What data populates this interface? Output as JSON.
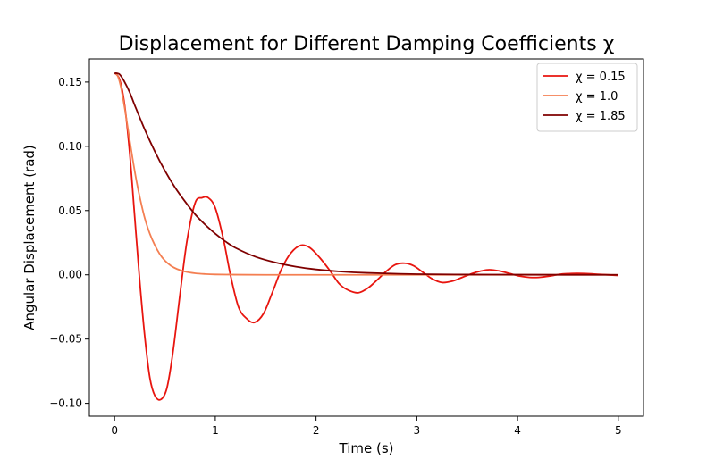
{
  "chart_data": {
    "type": "line",
    "title": "Displacement for Different Damping Coefficients χ",
    "xlabel": "Time (s)",
    "ylabel": "Angular Displacement (rad)",
    "xlim": [
      -0.25,
      5.25
    ],
    "ylim": [
      -0.11,
      0.168
    ],
    "xticks": [
      0,
      1,
      2,
      3,
      4,
      5
    ],
    "xtick_labels": [
      "0",
      "1",
      "2",
      "3",
      "4",
      "5"
    ],
    "yticks": [
      -0.1,
      -0.05,
      0.0,
      0.05,
      0.1,
      0.15
    ],
    "ytick_labels": [
      "−0.10",
      "−0.05",
      "0.00",
      "0.05",
      "0.10",
      "0.15"
    ],
    "grid": false,
    "legend_position": "top-right",
    "series": [
      {
        "name": "χ =  0.15",
        "color": "#e8150f",
        "x": [
          0,
          0.05,
          0.1,
          0.15,
          0.2,
          0.25,
          0.3,
          0.35,
          0.4,
          0.46,
          0.52,
          0.58,
          0.65,
          0.72,
          0.8,
          0.87,
          0.93,
          1.0,
          1.08,
          1.15,
          1.23,
          1.31,
          1.39,
          1.48,
          1.57,
          1.66,
          1.75,
          1.85,
          1.94,
          2.04,
          2.14,
          2.23,
          2.32,
          2.42,
          2.52,
          2.62,
          2.7,
          2.79,
          2.88,
          2.97,
          3.06,
          3.15,
          3.25,
          3.35,
          3.45,
          3.55,
          3.64,
          3.72,
          3.82,
          3.92,
          4.02,
          4.12,
          4.21,
          4.32,
          4.43,
          4.54,
          4.65,
          4.76,
          4.87,
          5.0
        ],
        "values": [
          0.157,
          0.152,
          0.132,
          0.095,
          0.045,
          -0.005,
          -0.048,
          -0.08,
          -0.094,
          -0.097,
          -0.088,
          -0.06,
          -0.015,
          0.027,
          0.056,
          0.06,
          0.06,
          0.052,
          0.028,
          0.0,
          -0.025,
          -0.034,
          -0.037,
          -0.03,
          -0.013,
          0.005,
          0.017,
          0.023,
          0.021,
          0.013,
          0.003,
          -0.007,
          -0.012,
          -0.014,
          -0.01,
          -0.003,
          0.003,
          0.008,
          0.009,
          0.007,
          0.002,
          -0.003,
          -0.006,
          -0.005,
          -0.002,
          0.001,
          0.003,
          0.004,
          0.003,
          0.001,
          -0.001,
          -0.002,
          -0.002,
          -0.001,
          0.0005,
          0.001,
          0.001,
          0.0006,
          0.0001,
          -0.0005
        ]
      },
      {
        "name": "χ =  1.0",
        "color": "#f47f52",
        "x": [
          0,
          0.03,
          0.06,
          0.1,
          0.14,
          0.18,
          0.22,
          0.26,
          0.3,
          0.35,
          0.4,
          0.45,
          0.5,
          0.56,
          0.62,
          0.7,
          0.8,
          0.9,
          1.0,
          1.2,
          1.5,
          2.0,
          3.0,
          4.0,
          5.0
        ],
        "values": [
          0.157,
          0.155,
          0.147,
          0.13,
          0.11,
          0.09,
          0.072,
          0.057,
          0.044,
          0.032,
          0.023,
          0.016,
          0.011,
          0.007,
          0.0045,
          0.0025,
          0.0012,
          0.0006,
          0.0003,
          0.0001,
          0.0,
          0.0,
          0.0,
          0.0,
          0.0
        ]
      },
      {
        "name": "χ =  1.85",
        "color": "#7f0000",
        "x": [
          0,
          0.05,
          0.1,
          0.15,
          0.2,
          0.3,
          0.4,
          0.5,
          0.6,
          0.7,
          0.8,
          0.9,
          1.0,
          1.1,
          1.2,
          1.4,
          1.6,
          1.8,
          2.0,
          2.25,
          2.5,
          3.0,
          3.5,
          4.0,
          4.5,
          5.0
        ],
        "values": [
          0.157,
          0.156,
          0.15,
          0.142,
          0.132,
          0.113,
          0.096,
          0.081,
          0.068,
          0.057,
          0.047,
          0.039,
          0.032,
          0.026,
          0.021,
          0.014,
          0.0095,
          0.0063,
          0.0042,
          0.0025,
          0.0015,
          0.0005,
          0.0002,
          0.0001,
          3e-05,
          0.0
        ]
      }
    ]
  }
}
